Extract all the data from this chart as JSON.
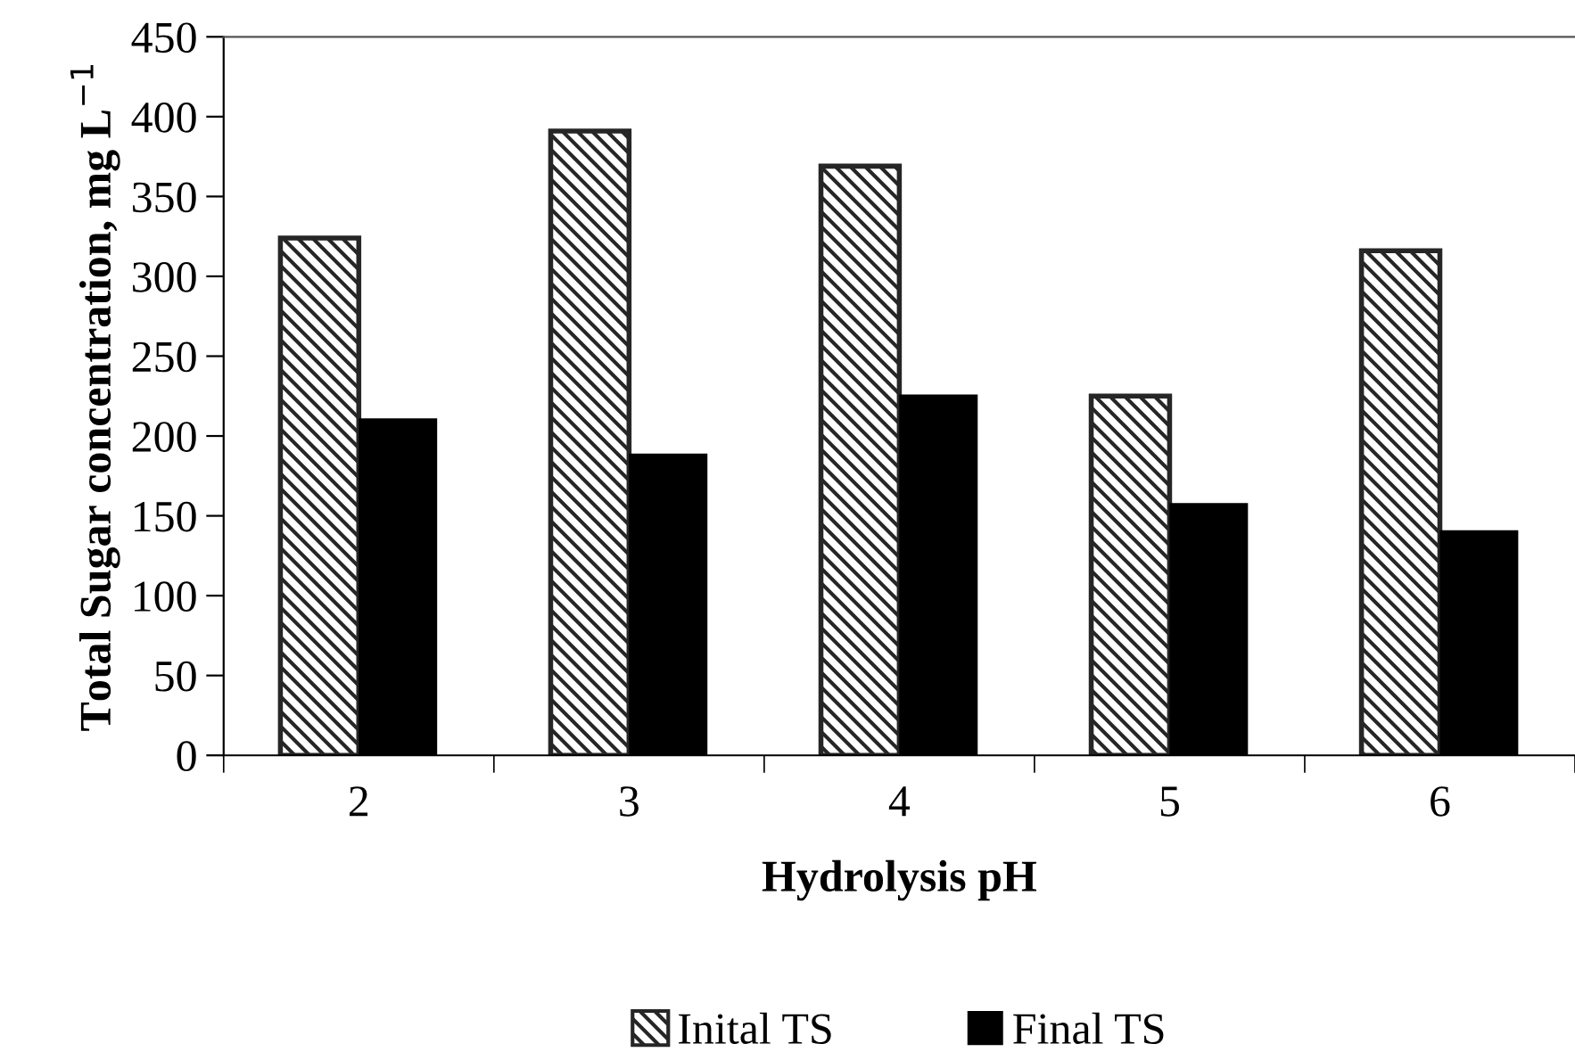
{
  "chart_data": {
    "type": "bar",
    "xlabel": "Hydrolysis pH",
    "ylabel": "Total Sugar concentration, mg L$^{−1}$",
    "categories": [
      "2",
      "3",
      "4",
      "5",
      "6"
    ],
    "series": [
      {
        "name": "Inital TS",
        "color": "#262626",
        "values": [
          324,
          391,
          369,
          225,
          316
        ]
      },
      {
        "name": "Final TS",
        "color": "#000000",
        "values": [
          211,
          189,
          226,
          158,
          141
        ]
      }
    ],
    "ylim": [
      0,
      450
    ],
    "yticks": [
      0,
      50,
      100,
      150,
      200,
      250,
      300,
      350,
      400,
      450
    ],
    "grid": false,
    "legend": "bottom"
  }
}
